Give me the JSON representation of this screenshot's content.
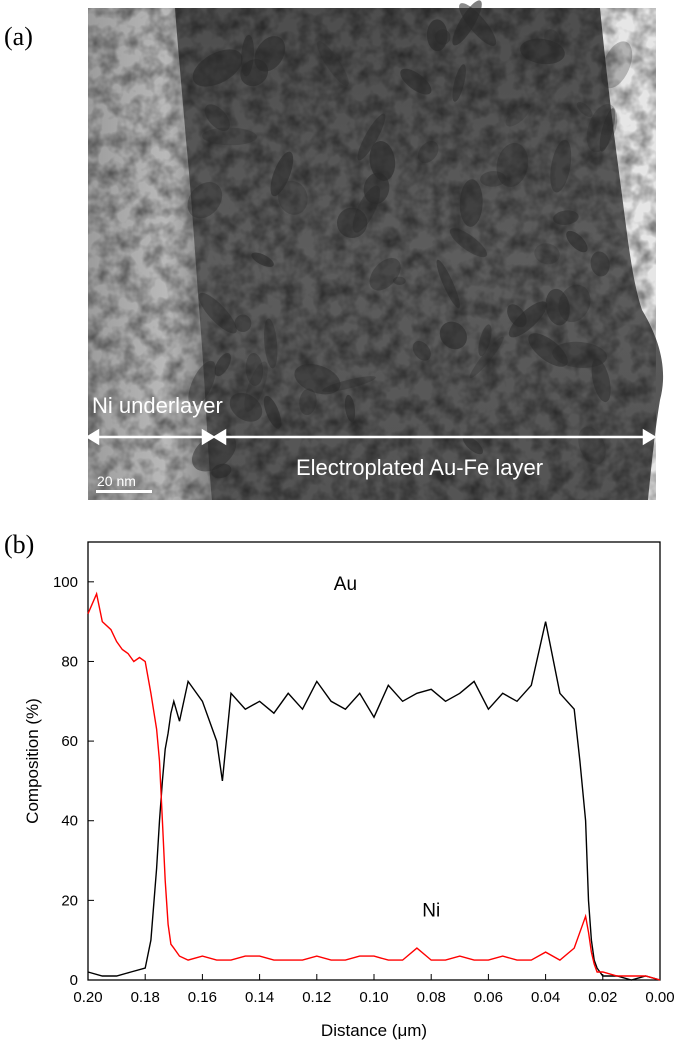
{
  "panel_a": {
    "label": "(a)",
    "ni_label": "Ni underlayer",
    "aufe_label": "Electroplated Au-Fe layer",
    "scale_label": "20 nm"
  },
  "panel_b": {
    "label": "(b)"
  },
  "chart_data": {
    "type": "line",
    "xlabel": "Distance (μm)",
    "ylabel": "Composition (%)",
    "xlim": [
      0.2,
      0.0
    ],
    "ylim": [
      0,
      110
    ],
    "x_reversed": true,
    "xticks": [
      "0.20",
      "0.18",
      "0.16",
      "0.14",
      "0.12",
      "0.10",
      "0.08",
      "0.06",
      "0.04",
      "0.02",
      "0.00"
    ],
    "yticks": [
      "0",
      "20",
      "40",
      "60",
      "80",
      "100"
    ],
    "annotations": [
      {
        "text": "Au",
        "x": 0.11,
        "y": 98
      },
      {
        "text": "Ni",
        "x": 0.08,
        "y": 16
      }
    ],
    "series": [
      {
        "name": "Au",
        "color": "#000000",
        "x": [
          0.2,
          0.195,
          0.19,
          0.185,
          0.18,
          0.178,
          0.176,
          0.175,
          0.174,
          0.173,
          0.172,
          0.171,
          0.17,
          0.168,
          0.165,
          0.16,
          0.155,
          0.153,
          0.15,
          0.145,
          0.14,
          0.135,
          0.13,
          0.125,
          0.12,
          0.115,
          0.11,
          0.105,
          0.1,
          0.095,
          0.09,
          0.085,
          0.08,
          0.075,
          0.07,
          0.065,
          0.06,
          0.055,
          0.05,
          0.045,
          0.04,
          0.035,
          0.03,
          0.028,
          0.026,
          0.025,
          0.024,
          0.023,
          0.022,
          0.02,
          0.015,
          0.01,
          0.005,
          0.0
        ],
        "y": [
          2,
          1,
          1,
          2,
          3,
          10,
          28,
          40,
          50,
          58,
          62,
          67,
          70,
          65,
          75,
          70,
          60,
          50,
          72,
          68,
          70,
          67,
          72,
          68,
          75,
          70,
          68,
          72,
          66,
          74,
          70,
          72,
          73,
          70,
          72,
          75,
          68,
          72,
          70,
          74,
          90,
          72,
          68,
          55,
          40,
          20,
          10,
          5,
          3,
          1,
          1,
          0,
          1,
          0
        ]
      },
      {
        "name": "Ni",
        "color": "#ff0000",
        "x": [
          0.2,
          0.197,
          0.195,
          0.192,
          0.19,
          0.188,
          0.186,
          0.184,
          0.182,
          0.18,
          0.178,
          0.176,
          0.175,
          0.174,
          0.173,
          0.172,
          0.171,
          0.17,
          0.168,
          0.165,
          0.16,
          0.155,
          0.15,
          0.145,
          0.14,
          0.135,
          0.13,
          0.125,
          0.12,
          0.115,
          0.11,
          0.105,
          0.1,
          0.095,
          0.09,
          0.085,
          0.08,
          0.075,
          0.07,
          0.065,
          0.06,
          0.055,
          0.05,
          0.045,
          0.04,
          0.035,
          0.03,
          0.028,
          0.026,
          0.025,
          0.024,
          0.023,
          0.022,
          0.02,
          0.015,
          0.01,
          0.005,
          0.0
        ],
        "y": [
          92,
          97,
          90,
          88,
          85,
          83,
          82,
          80,
          81,
          80,
          72,
          63,
          55,
          40,
          25,
          14,
          9,
          8,
          6,
          5,
          6,
          5,
          5,
          6,
          6,
          5,
          5,
          5,
          6,
          5,
          5,
          6,
          6,
          5,
          5,
          8,
          5,
          5,
          6,
          5,
          5,
          6,
          5,
          5,
          7,
          5,
          8,
          12,
          16,
          12,
          7,
          4,
          2,
          2,
          1,
          1,
          1,
          0
        ]
      }
    ]
  }
}
